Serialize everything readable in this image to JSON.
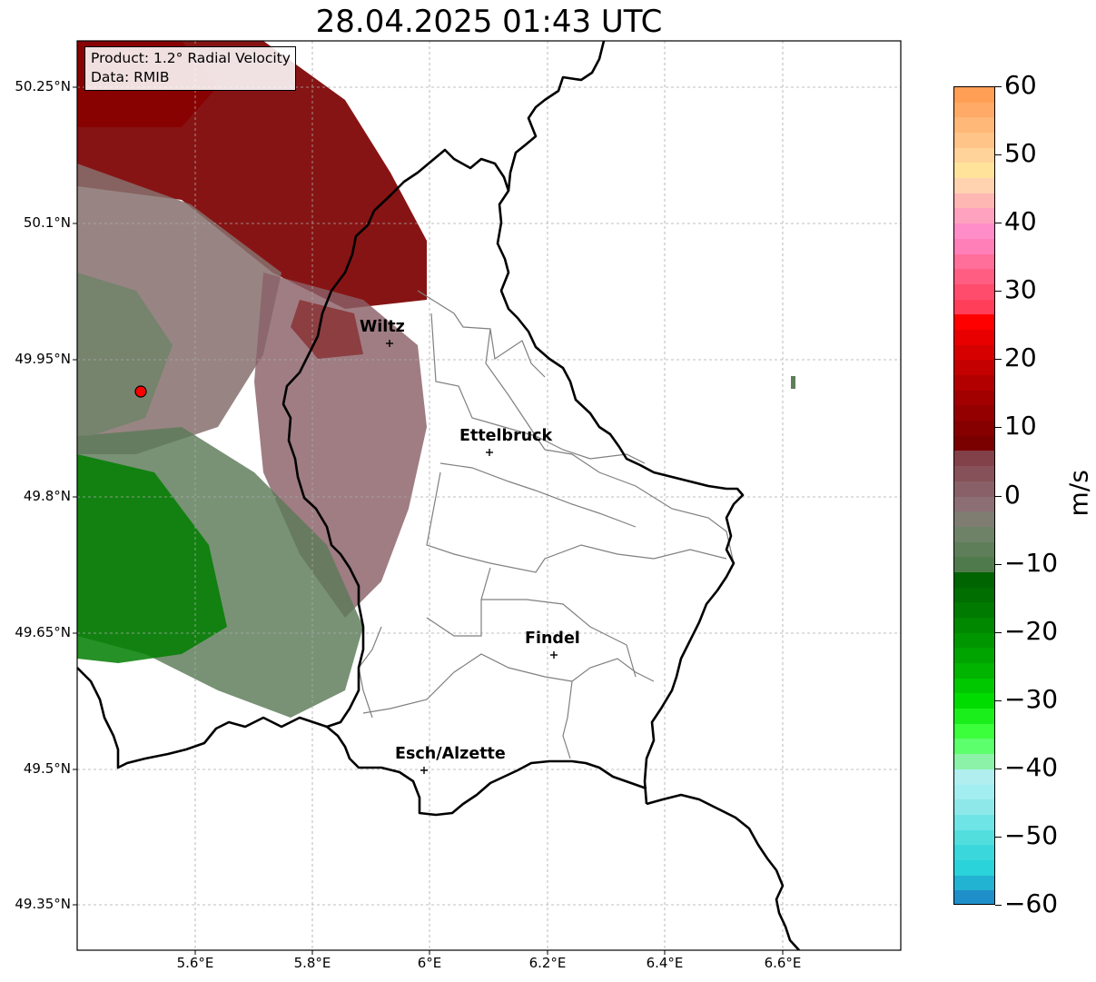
{
  "title": "28.04.2025 01:43 UTC",
  "info": {
    "product": "Product: 1.2° Radial Velocity",
    "data": "Data: RMIB"
  },
  "map": {
    "lat_ticks": [
      "50.25°N",
      "50.1°N",
      "49.95°N",
      "49.8°N",
      "49.65°N",
      "49.5°N",
      "49.35°N"
    ],
    "lon_ticks": [
      "5.6°E",
      "5.8°E",
      "6°E",
      "6.2°E",
      "6.4°E",
      "6.6°E"
    ],
    "cities": [
      {
        "name": "Wiltz"
      },
      {
        "name": "Ettelbruck"
      },
      {
        "name": "Findel"
      },
      {
        "name": "Esch/Alzette"
      }
    ],
    "radar_site_marker": "red-dot",
    "grid": true
  },
  "colorbar": {
    "label": "m/s",
    "min": -60,
    "max": 60,
    "ticks": [
      "60",
      "50",
      "40",
      "30",
      "20",
      "10",
      "0",
      "−10",
      "−20",
      "−30",
      "−40",
      "−50",
      "−60"
    ],
    "colors_top_to_bottom": [
      "#ff9f55",
      "#ffaa66",
      "#ffb877",
      "#ffc488",
      "#ffd399",
      "#ffe39b",
      "#ffd2b0",
      "#ffb7b4",
      "#ffa2bf",
      "#ff8ec8",
      "#ff7fb8",
      "#ff6f9a",
      "#ff5d82",
      "#ff4c6c",
      "#ff3f5a",
      "#ff0000",
      "#e80000",
      "#d60000",
      "#c40000",
      "#b20000",
      "#a20000",
      "#940000",
      "#870000",
      "#7a0000",
      "#824048",
      "#865158",
      "#8a6068",
      "#8b6f74",
      "#7f7c72",
      "#6e8268",
      "#5e7e5a",
      "#4f7a4c",
      "#006400",
      "#006e00",
      "#007a00",
      "#008800",
      "#009600",
      "#00a400",
      "#00b400",
      "#00c800",
      "#00dc00",
      "#1bef1b",
      "#3bff3b",
      "#5cff6c",
      "#8cf2a8",
      "#b0eef0",
      "#a2eef0",
      "#8ee8ea",
      "#6fe4e6",
      "#53dede",
      "#3ad8dc",
      "#2ad2da",
      "#22b2d2",
      "#1f8fca"
    ],
    "accent_site": "#ff0000"
  }
}
